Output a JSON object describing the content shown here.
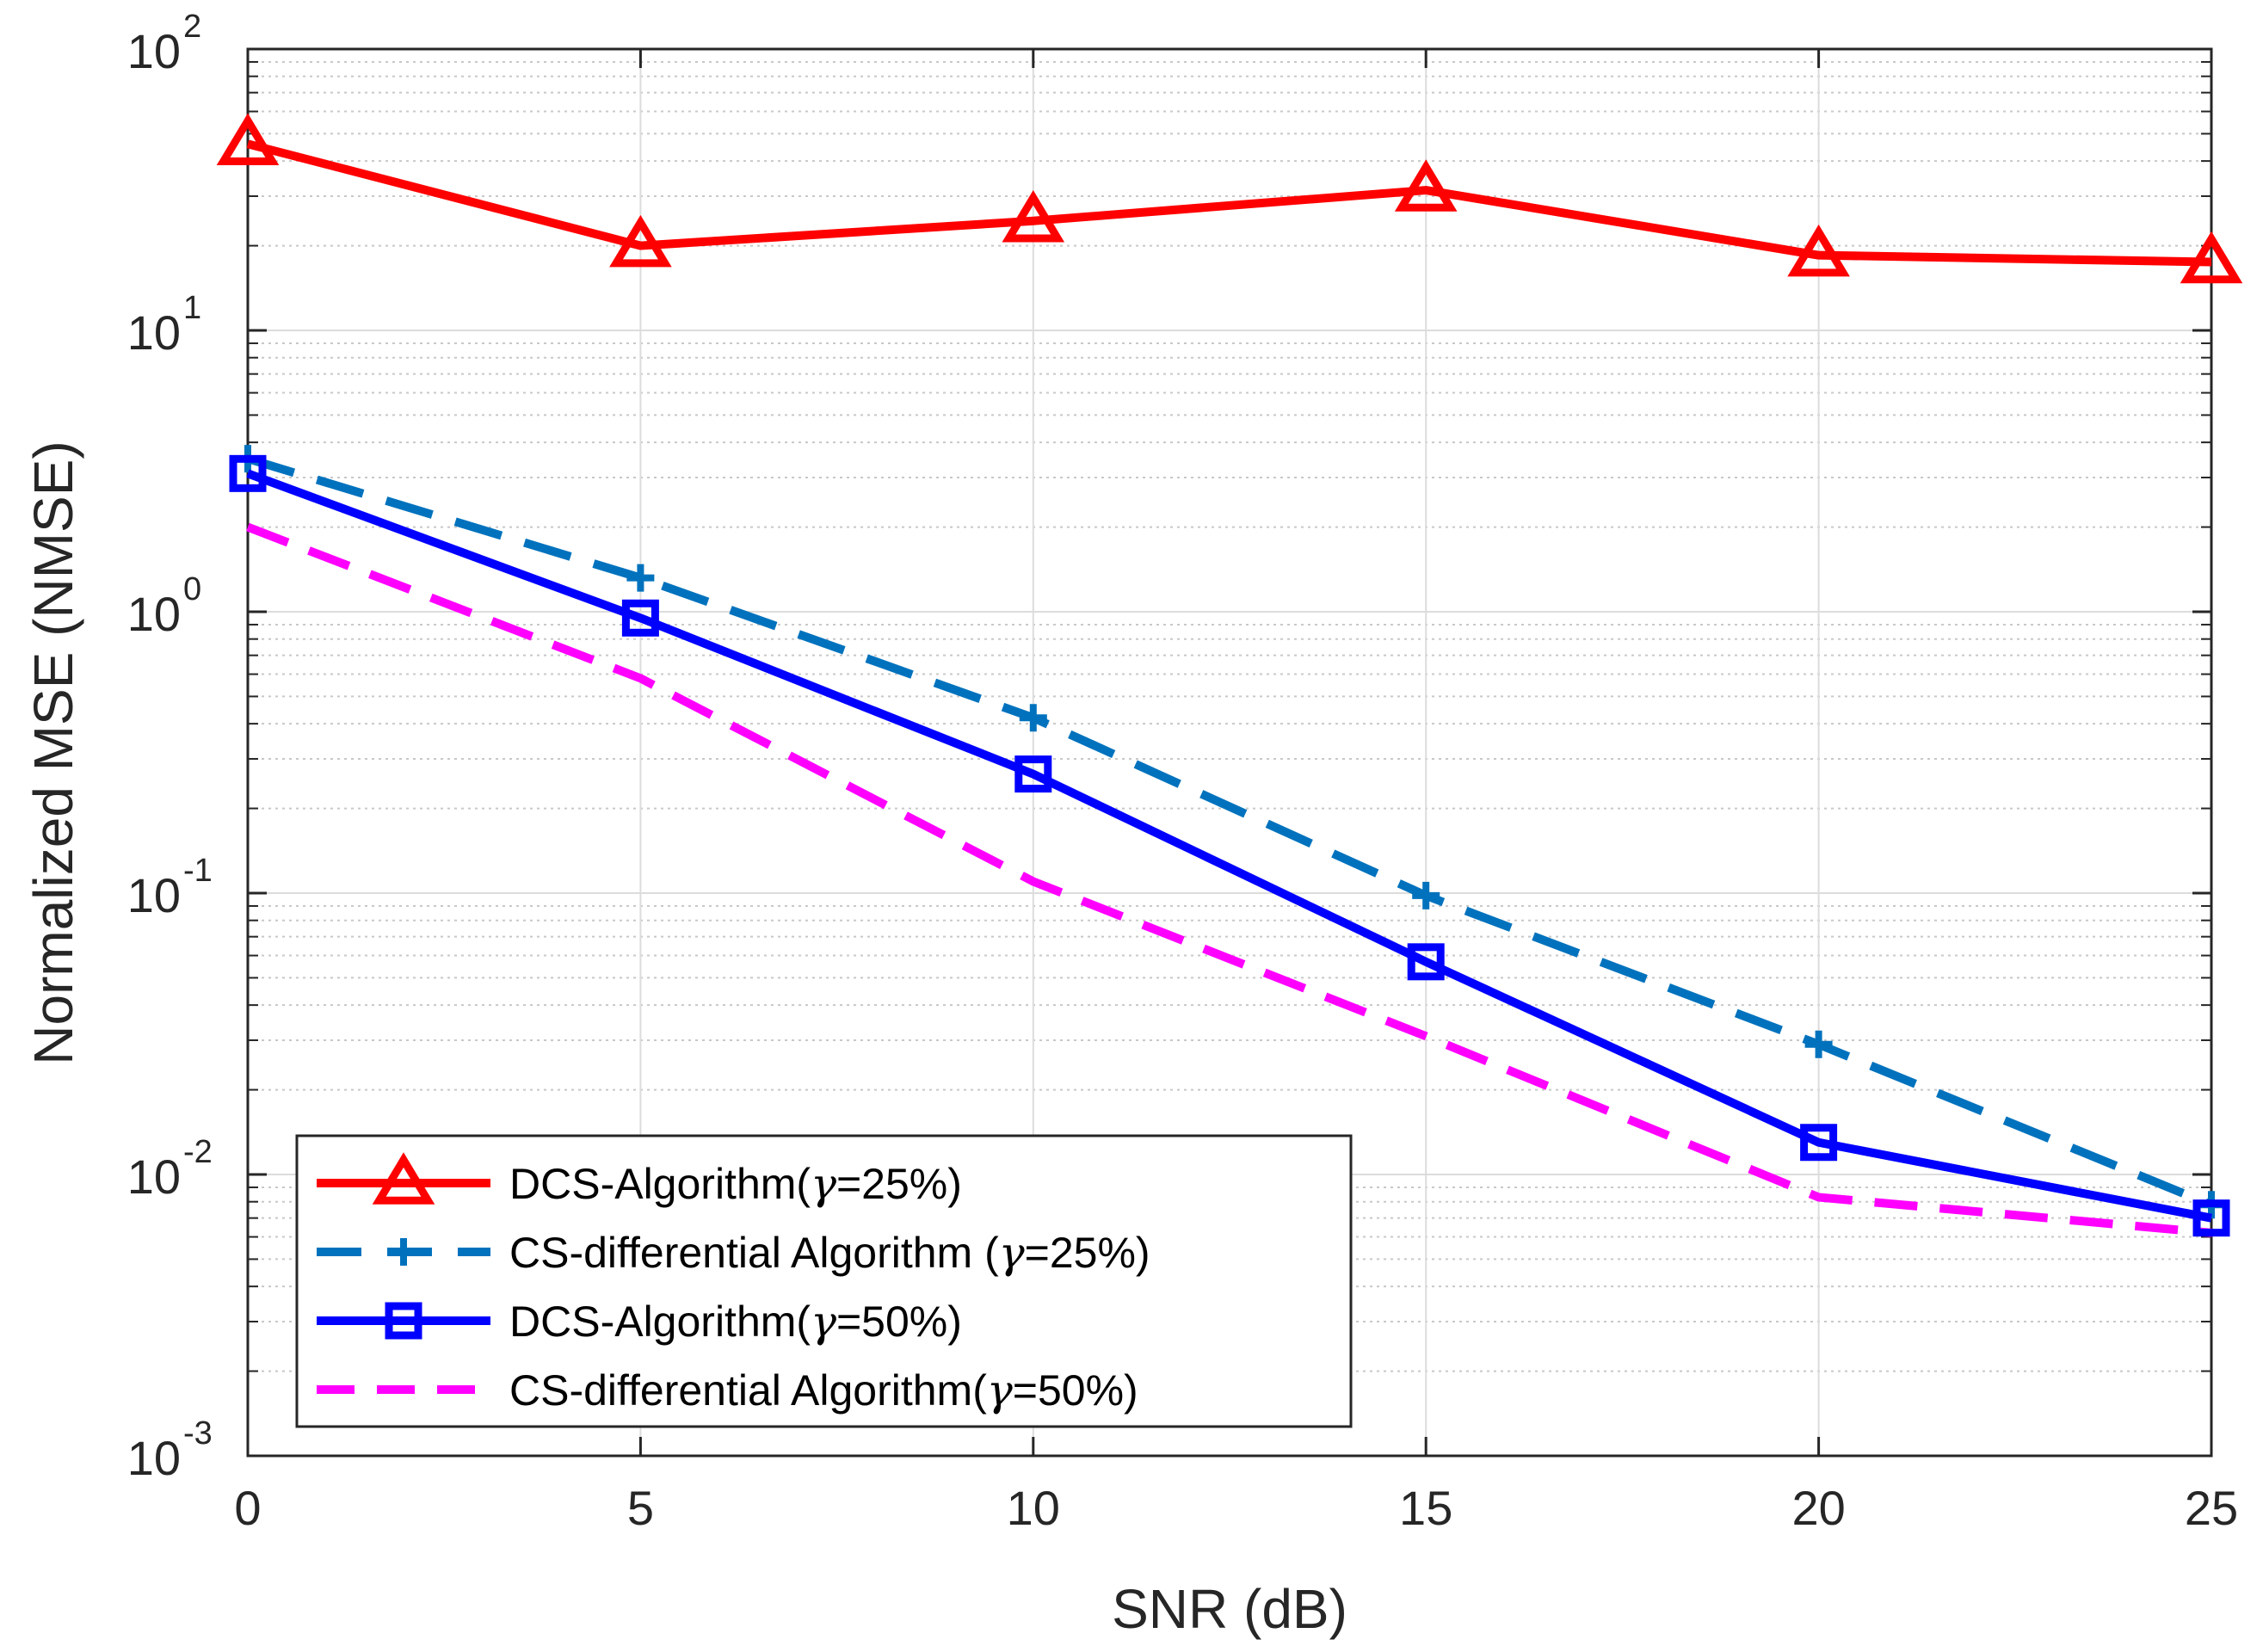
{
  "chart_data": {
    "type": "line",
    "title": "",
    "xlabel": "SNR (dB)",
    "ylabel": "Normalized MSE (NMSE)",
    "x": [
      0,
      5,
      10,
      15,
      20,
      25
    ],
    "xlim": [
      0,
      25
    ],
    "ylim": [
      0.001,
      100
    ],
    "yscale": "log",
    "grid": true,
    "legend_position": "bottom-left",
    "x_ticks": [
      "0",
      "5",
      "10",
      "15",
      "20",
      "25"
    ],
    "y_ticks": [
      {
        "value": 0.001,
        "base": "10",
        "exp": "-3"
      },
      {
        "value": 0.01,
        "base": "10",
        "exp": "-2"
      },
      {
        "value": 0.1,
        "base": "10",
        "exp": "-1"
      },
      {
        "value": 1,
        "base": "10",
        "exp": "0"
      },
      {
        "value": 10,
        "base": "10",
        "exp": "1"
      },
      {
        "value": 100,
        "base": "10",
        "exp": "2"
      }
    ],
    "series": [
      {
        "name": "DCS-Algorithm(γ=25%)",
        "label_prefix": "DCS-Algorithm(",
        "label_symbol": "γ",
        "label_suffix": "=25%)",
        "values": [
          46,
          20,
          24.5,
          31.5,
          18.5,
          17.5
        ],
        "color": "#ff0000",
        "line": "solid",
        "marker": "triangle"
      },
      {
        "name": "CS-differential Algorithm (γ=25%)",
        "label_prefix": "CS-differential Algorithm (",
        "label_symbol": "γ",
        "label_suffix": "=25%)",
        "values": [
          3.5,
          1.32,
          0.42,
          0.098,
          0.029,
          0.0078
        ],
        "color": "#0072bd",
        "line": "dashed",
        "marker": "plus"
      },
      {
        "name": "DCS-Algorithm(γ=50%)",
        "label_prefix": "DCS-Algorithm(",
        "label_symbol": "γ",
        "label_suffix": "=50%)",
        "values": [
          3.1,
          0.95,
          0.265,
          0.057,
          0.013,
          0.007
        ],
        "color": "#0000ff",
        "line": "solid",
        "marker": "square"
      },
      {
        "name": "CS-differential Algorithm(γ=50%)",
        "label_prefix": "CS-differential Algorithm(",
        "label_symbol": "γ",
        "label_suffix": "=50%)",
        "values": [
          2.0,
          0.58,
          0.11,
          0.031,
          0.0083,
          0.0062
        ],
        "color": "#ff00ff",
        "line": "dashed",
        "marker": "none"
      }
    ]
  }
}
